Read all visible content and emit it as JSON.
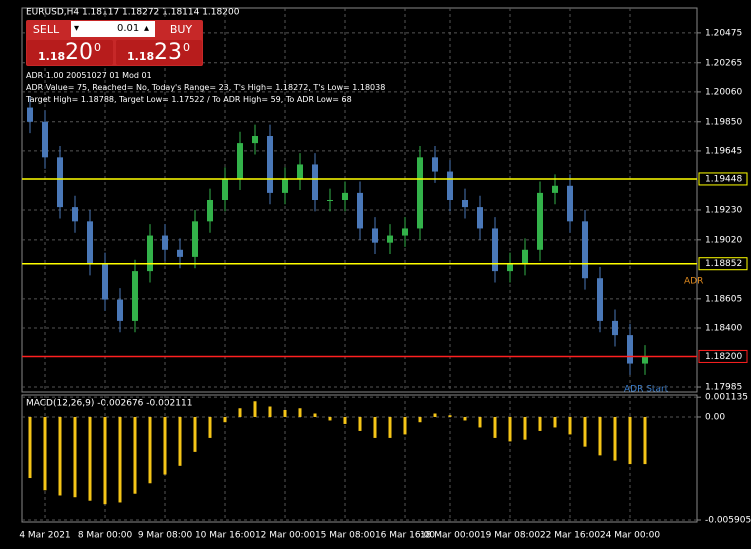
{
  "header": {
    "symbol_line": "EURUSD,H4  1.18117 1.18272 1.18114 1.18200"
  },
  "trade_panel": {
    "sell": "SELL",
    "buy": "BUY",
    "lot": "0.01",
    "lot_down": "▾",
    "lot_up": "▴",
    "sell_small": "1.18",
    "sell_big": "20",
    "sell_point": "0",
    "buy_small": "1.18",
    "buy_big": "23",
    "buy_point": "0"
  },
  "indicator_text": [
    "ADR 1.00 20051027 01 Mod 01",
    "ADR Value= 75, Reached= No, Today's Range= 23, T's High= 1.18272, T's Low= 1.18038",
    "Target High= 1.18788, Target Low= 1.17522 / To ADR High= 59, To ADR Low= 68"
  ],
  "annotations": [
    "ADR",
    "ADR Start"
  ],
  "chart_data": [
    {
      "type": "candlestick",
      "categories": [
        null,
        "4 Mar 2021",
        null,
        null,
        null,
        "8 Mar 00:00",
        null,
        null,
        null,
        "9 Mar 08:00",
        null,
        null,
        null,
        "10 Mar 16:00",
        null,
        null,
        null,
        "12 Mar 00:00",
        null,
        null,
        null,
        "15 Mar 08:00",
        null,
        null,
        null,
        "16 Mar 16:00",
        null,
        null,
        "18 Mar 00:00",
        null,
        null,
        null,
        "19 Mar 08:00",
        null,
        null,
        null,
        "22 Mar 16:00",
        null,
        null,
        null,
        "24 Mar 00:00",
        null
      ],
      "open": [
        1.1995,
        1.1985,
        1.196,
        1.1925,
        1.1915,
        1.1885,
        1.186,
        1.1845,
        1.188,
        1.1905,
        1.1895,
        1.189,
        1.1915,
        1.193,
        1.1945,
        1.197,
        1.1975,
        1.1935,
        1.1945,
        1.1955,
        1.193,
        1.193,
        1.1935,
        1.191,
        1.19,
        1.1905,
        1.191,
        1.196,
        1.195,
        1.193,
        1.1925,
        1.191,
        1.188,
        1.1885,
        1.1895,
        1.1935,
        1.194,
        1.1915,
        1.1875,
        1.1845,
        1.1835,
        1.1815
      ],
      "high": [
        1.2003,
        1.1993,
        1.1968,
        1.1933,
        1.1923,
        1.1893,
        1.1868,
        1.1888,
        1.1913,
        1.1913,
        1.1903,
        1.1923,
        1.1938,
        1.1953,
        1.1978,
        1.1983,
        1.1983,
        1.1953,
        1.1963,
        1.1963,
        1.1938,
        1.1943,
        1.1943,
        1.1918,
        1.1913,
        1.1918,
        1.1968,
        1.1968,
        1.1958,
        1.1938,
        1.1933,
        1.1918,
        1.1893,
        1.1903,
        1.1943,
        1.1948,
        1.1948,
        1.1923,
        1.1883,
        1.1853,
        1.1843,
        1.1828
      ],
      "low": [
        1.1977,
        1.1952,
        1.1917,
        1.1907,
        1.1877,
        1.1852,
        1.1837,
        1.1837,
        1.1872,
        1.1887,
        1.1882,
        1.1882,
        1.1907,
        1.1922,
        1.1937,
        1.1962,
        1.1927,
        1.1927,
        1.1937,
        1.1922,
        1.1922,
        1.1922,
        1.1902,
        1.1892,
        1.1892,
        1.1897,
        1.1902,
        1.1942,
        1.1922,
        1.1917,
        1.1902,
        1.1872,
        1.1872,
        1.1877,
        1.1887,
        1.1927,
        1.1907,
        1.1867,
        1.1837,
        1.1827,
        1.1807,
        1.1807
      ],
      "close": [
        1.1985,
        1.196,
        1.1925,
        1.1915,
        1.1885,
        1.186,
        1.1845,
        1.188,
        1.1905,
        1.1895,
        1.189,
        1.1915,
        1.193,
        1.1945,
        1.197,
        1.1975,
        1.1935,
        1.1945,
        1.1955,
        1.193,
        1.193,
        1.1935,
        1.191,
        1.19,
        1.1905,
        1.191,
        1.196,
        1.195,
        1.193,
        1.1925,
        1.191,
        1.188,
        1.1885,
        1.1895,
        1.1935,
        1.194,
        1.1915,
        1.1875,
        1.1845,
        1.1835,
        1.1815,
        1.182
      ],
      "up_color": "#33b24a",
      "down_color": "#4a78b8",
      "ylim": [
        1.1795,
        1.2065
      ],
      "yticks": [
        1.20475,
        1.20265,
        {
          "value": 1.2006,
          "label": "1.20060"
        },
        {
          "value": 1.1985,
          "label": "1.19850"
        },
        1.19645,
        {
          "value": 1.1923,
          "label": "1.19230"
        },
        {
          "value": 1.1902,
          "label": "1.19020"
        },
        1.18605,
        {
          "value": 1.184,
          "label": "1.18400"
        },
        1.17985
      ],
      "levels": [
        {
          "value": 1.19448,
          "color": "#ffff00"
        },
        {
          "value": 1.18852,
          "color": "#ffff00"
        },
        {
          "value": {
            "value": 1.182,
            "label": "1.18200"
          },
          "color": "#ff2020"
        }
      ],
      "grid": true
    },
    {
      "type": "bar",
      "title": "MACD(12,26,9) -0.002676 -0.002111",
      "color": "#f5c518",
      "values": [
        -0.0035,
        -0.0042,
        -0.0045,
        -0.0046,
        -0.0048,
        -0.005,
        -0.0049,
        -0.0044,
        -0.0038,
        -0.0033,
        -0.0028,
        -0.002,
        -0.0012,
        -0.0003,
        0.0005,
        0.0009,
        0.0006,
        0.0004,
        0.0005,
        0.0002,
        -0.0002,
        -0.0004,
        -0.0008,
        -0.0012,
        -0.0012,
        -0.001,
        -0.0003,
        0.0002,
        0.0001,
        -0.0002,
        -0.0006,
        -0.0012,
        -0.0014,
        -0.0013,
        -0.0008,
        -0.0006,
        -0.001,
        -0.0017,
        -0.0022,
        -0.0025,
        -0.0027,
        -0.0027
      ],
      "ylim": [
        -0.00602,
        0.00126
      ],
      "yticks": [
        0.001135,
        {
          "value": 0,
          "label": "0.00"
        },
        -0.005905
      ],
      "grid": true
    }
  ]
}
